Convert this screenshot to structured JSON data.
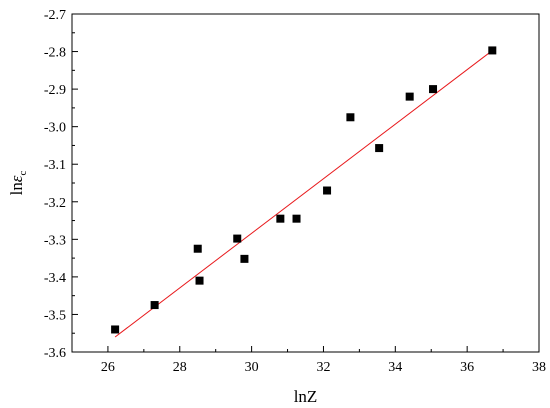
{
  "chart_data": {
    "type": "scatter",
    "title": "",
    "xlabel": "lnZ",
    "ylabel": {
      "prefix": "ln",
      "symbol": "ε",
      "subscript": "c"
    },
    "xlim": [
      25,
      38
    ],
    "ylim": [
      -3.6,
      -2.7
    ],
    "x_ticks": [
      26,
      28,
      30,
      32,
      34,
      36,
      38
    ],
    "y_ticks": [
      -2.7,
      -2.8,
      -2.9,
      -3.0,
      -3.1,
      -3.2,
      -3.3,
      -3.4,
      -3.5,
      -3.6
    ],
    "x_tick_labels": [
      "26",
      "28",
      "30",
      "32",
      "34",
      "36",
      "38"
    ],
    "y_tick_labels": [
      "-2.7",
      "-2.8",
      "-2.9",
      "-3.0",
      "-3.1",
      "-3.2",
      "-3.3",
      "-3.4",
      "-3.5",
      "-3.6"
    ],
    "grid": false,
    "legend": "none",
    "series": [
      {
        "type": "scatter",
        "marker": "square",
        "color": "#000000",
        "points": [
          {
            "x": 26.2,
            "y": -3.54
          },
          {
            "x": 27.3,
            "y": -3.475
          },
          {
            "x": 28.5,
            "y": -3.325
          },
          {
            "x": 28.55,
            "y": -3.41
          },
          {
            "x": 29.6,
            "y": -3.298
          },
          {
            "x": 29.8,
            "y": -3.352
          },
          {
            "x": 30.8,
            "y": -3.245
          },
          {
            "x": 31.25,
            "y": -3.245
          },
          {
            "x": 32.1,
            "y": -3.17
          },
          {
            "x": 32.75,
            "y": -2.975
          },
          {
            "x": 33.55,
            "y": -3.057
          },
          {
            "x": 34.4,
            "y": -2.92
          },
          {
            "x": 35.05,
            "y": -2.9
          },
          {
            "x": 36.7,
            "y": -2.797
          }
        ]
      },
      {
        "type": "line",
        "role": "linear fit",
        "color": "#e8191c",
        "points": [
          {
            "x": 26.2,
            "y": -3.56
          },
          {
            "x": 36.8,
            "y": -2.79
          }
        ]
      }
    ]
  }
}
